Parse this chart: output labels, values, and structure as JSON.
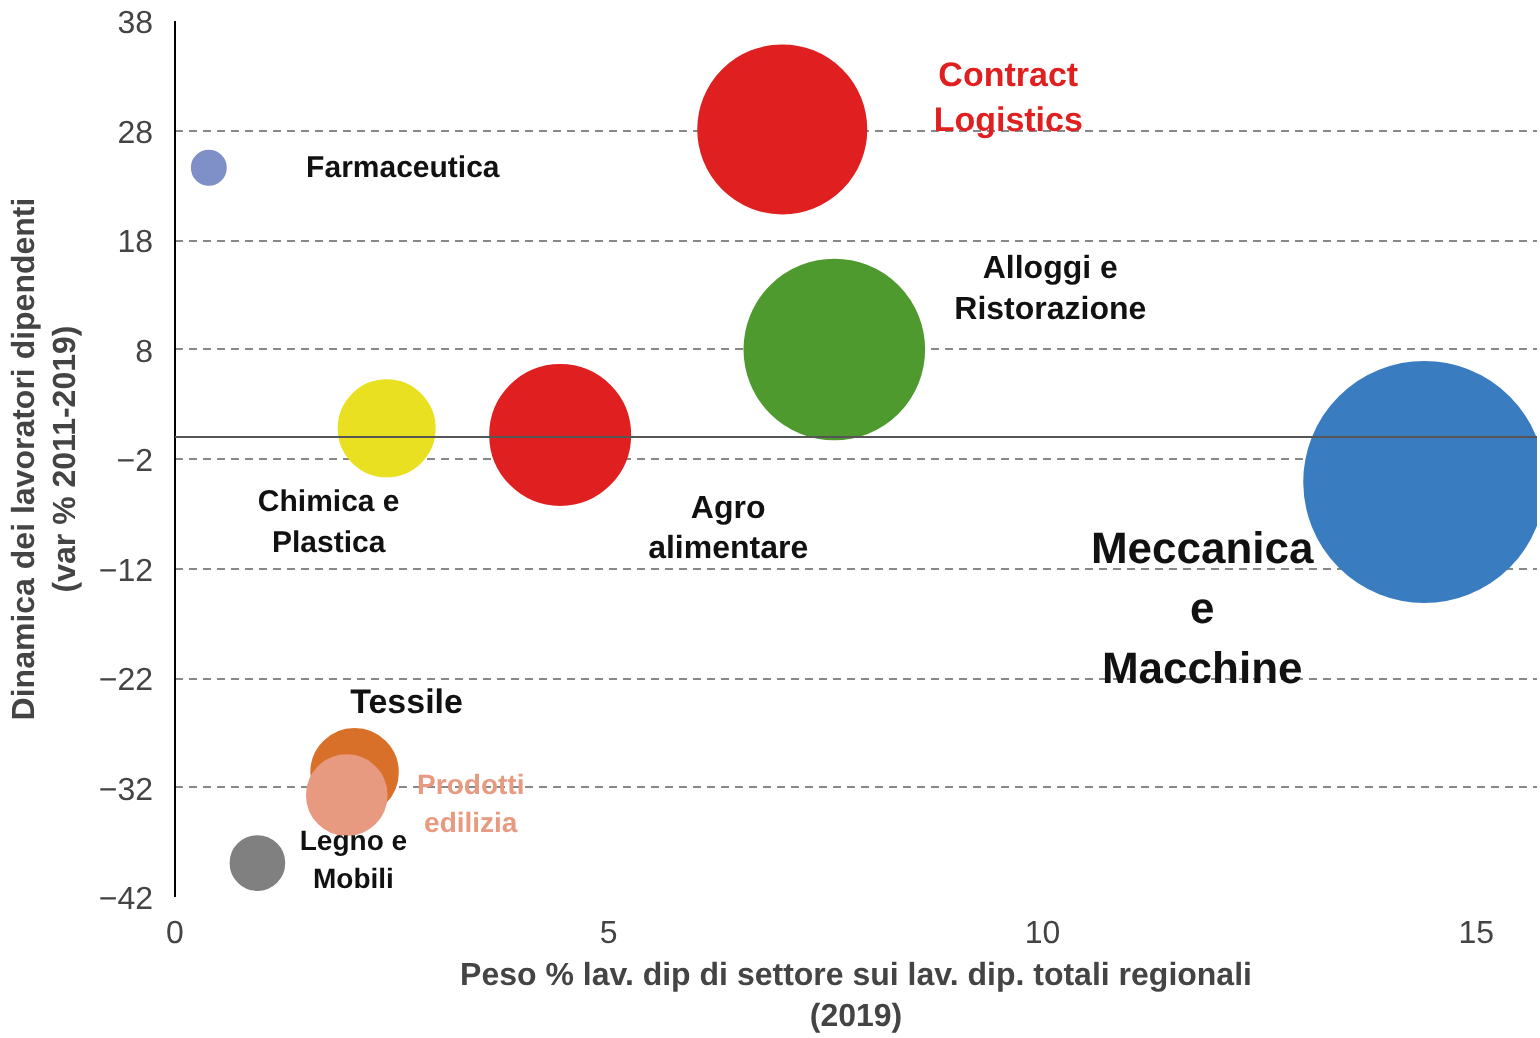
{
  "chart_data": {
    "type": "bubble",
    "xlabel": "Peso % lav. dip di settore sui lav. dip. totali regionali\n(2019)",
    "ylabel": "Dinamica dei lavoratori dipendenti\n(var % 2011-2019)",
    "series": [
      {
        "name": "Farmaceutica",
        "color": "#7f8fc8",
        "x": [
          0.39
        ],
        "values": [
          24.6
        ],
        "sizes": [
          0.02
        ]
      },
      {
        "name": "Contract\nLogistics",
        "color": "#e02020",
        "x": [
          7.0
        ],
        "values": [
          28.1
        ],
        "sizes": [
          0.49
        ]
      },
      {
        "name": "Alloggi e\nRistorazione",
        "color": "#4e9a2e",
        "x": [
          7.6
        ],
        "values": [
          8.0
        ],
        "sizes": [
          0.56
        ]
      },
      {
        "name": "Chimica e\nPlastica",
        "color": "#e8e020",
        "x": [
          2.44
        ],
        "values": [
          0.8
        ],
        "sizes": [
          0.16
        ]
      },
      {
        "name": "Agro\nalimentare",
        "color": "#e02020",
        "x": [
          4.44
        ],
        "values": [
          0.2
        ],
        "sizes": [
          0.34
        ]
      },
      {
        "name": "Meccanica\ne\nMacchine",
        "color": "#3a7cc0",
        "x": [
          14.4
        ],
        "values": [
          -4.1
        ],
        "sizes": [
          1
        ]
      },
      {
        "name": "Tessile",
        "color": "#d8702a",
        "x": [
          2.07
        ],
        "values": [
          -30.6
        ],
        "sizes": [
          0.13
        ]
      },
      {
        "name": "Prodotti\nedilizia",
        "color": "#e89a80",
        "x": [
          1.98
        ],
        "values": [
          -32.7
        ],
        "sizes": [
          0.11
        ]
      },
      {
        "name": "Legno e\nMobili",
        "color": "#808080",
        "x": [
          0.95
        ],
        "values": [
          -38.9
        ],
        "sizes": [
          0.05
        ]
      }
    ],
    "xlim": [
      0,
      15.7
    ],
    "ylim": [
      -42,
      38
    ],
    "xticks": [
      0,
      5,
      10,
      15
    ],
    "yticks": [
      -42,
      -32,
      -22,
      -12,
      -2,
      8,
      18,
      28,
      38
    ],
    "grid": "y",
    "ref_lines": [
      {
        "axis": "y",
        "value": 0,
        "label": null
      }
    ]
  }
}
